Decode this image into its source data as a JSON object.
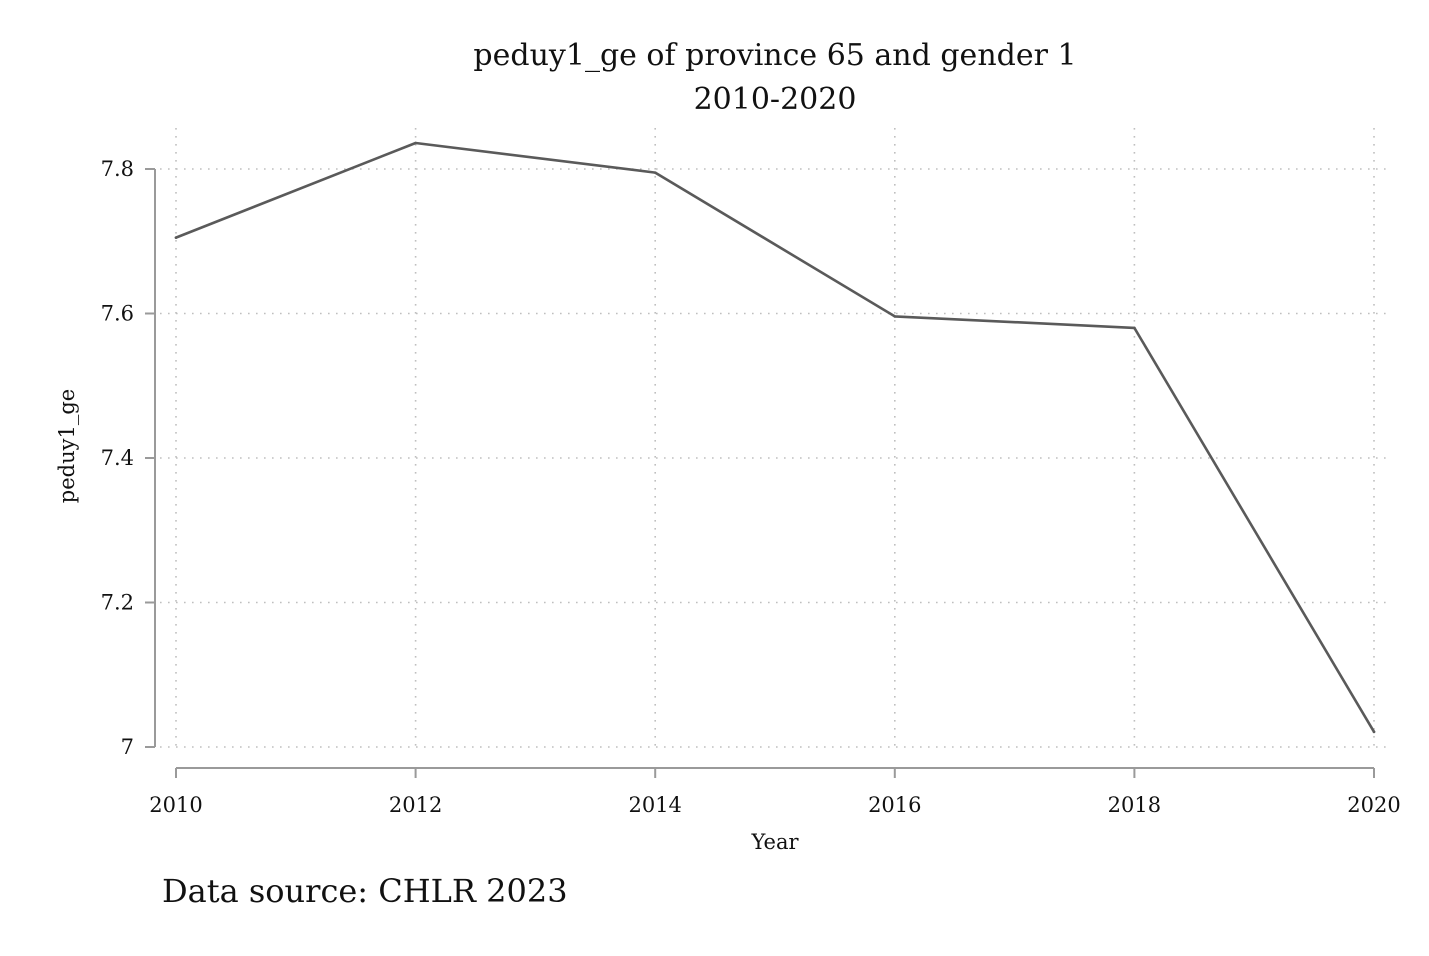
{
  "chart_data": {
    "type": "line",
    "title": "peduy1_ge of province 65 and gender 1",
    "subtitle": "2010-2020",
    "xlabel": "Year",
    "ylabel": "peduy1_ge",
    "x": [
      2010,
      2012,
      2014,
      2016,
      2018,
      2020
    ],
    "series": [
      {
        "values": [
          7.705,
          7.836,
          7.795,
          7.596,
          7.58,
          7.021
        ]
      }
    ],
    "x_ticks": [
      "2010",
      "2012",
      "2014",
      "2016",
      "2018",
      "2020"
    ],
    "y_ticks": [
      "7",
      "7.2",
      "7.4",
      "7.6",
      "7.8"
    ],
    "xlim": [
      2010,
      2020
    ],
    "ylim": [
      7.0,
      7.8
    ],
    "grid": true,
    "legend": "none",
    "note": "Data source: CHLR 2023",
    "colors": {
      "line": "#5a5a5a",
      "grid": "#bfbfbf",
      "axis": "#9a9a9a"
    }
  }
}
